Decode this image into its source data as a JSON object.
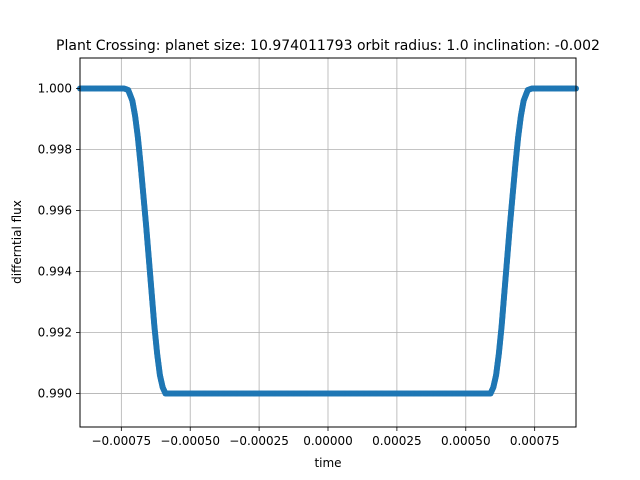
{
  "chart_data": {
    "type": "scatter",
    "title": "Plant Crossing: planet size: 10.974011793 orbit radius: 1.0 inclination: -0.002",
    "xlabel": "time",
    "ylabel": "differntial flux",
    "xlim": [
      -0.0009,
      0.0009
    ],
    "ylim": [
      0.9889,
      1.001
    ],
    "xticks": [
      -0.00075,
      -0.0005,
      -0.00025,
      0.0,
      0.00025,
      0.0005,
      0.00075
    ],
    "xtick_labels": [
      "−0.00075",
      "−0.00050",
      "−0.00025",
      "0.00000",
      "0.00025",
      "0.00050",
      "0.00075"
    ],
    "yticks": [
      0.99,
      0.992,
      0.994,
      0.996,
      0.998,
      1.0
    ],
    "ytick_labels": [
      "0.990",
      "0.992",
      "0.994",
      "0.996",
      "0.998",
      "1.000"
    ],
    "grid": true,
    "legend": "none",
    "series": [
      {
        "color": "#1f77b4",
        "marker": "circle",
        "points": [
          [
            -0.0009,
            1.0
          ],
          [
            -0.0008,
            1.0
          ],
          [
            -0.00074,
            1.0
          ],
          [
            -0.000725,
            0.99995
          ],
          [
            -0.00071,
            0.9996
          ],
          [
            -0.0007,
            0.9991
          ],
          [
            -0.00069,
            0.9984
          ],
          [
            -0.00068,
            0.9975
          ],
          [
            -0.00067,
            0.9965
          ],
          [
            -0.00066,
            0.9955
          ],
          [
            -0.00065,
            0.9944
          ],
          [
            -0.00064,
            0.9933
          ],
          [
            -0.00063,
            0.9922
          ],
          [
            -0.00062,
            0.9913
          ],
          [
            -0.00061,
            0.9906
          ],
          [
            -0.0006,
            0.9902
          ],
          [
            -0.00059,
            0.99
          ],
          [
            -0.000575,
            0.99
          ],
          [
            -0.0005,
            0.99
          ],
          [
            -0.00025,
            0.99
          ],
          [
            0.0,
            0.99
          ],
          [
            0.00025,
            0.99
          ],
          [
            0.0005,
            0.99
          ],
          [
            0.000575,
            0.99
          ],
          [
            0.00059,
            0.99
          ],
          [
            0.0006,
            0.9902
          ],
          [
            0.00061,
            0.9906
          ],
          [
            0.00062,
            0.9913
          ],
          [
            0.00063,
            0.9922
          ],
          [
            0.00064,
            0.9933
          ],
          [
            0.00065,
            0.9944
          ],
          [
            0.00066,
            0.9955
          ],
          [
            0.00067,
            0.9965
          ],
          [
            0.00068,
            0.9975
          ],
          [
            0.00069,
            0.9984
          ],
          [
            0.0007,
            0.9991
          ],
          [
            0.00071,
            0.9996
          ],
          [
            0.000725,
            0.99995
          ],
          [
            0.00074,
            1.0
          ],
          [
            0.0008,
            1.0
          ],
          [
            0.0009,
            1.0
          ]
        ]
      }
    ]
  }
}
